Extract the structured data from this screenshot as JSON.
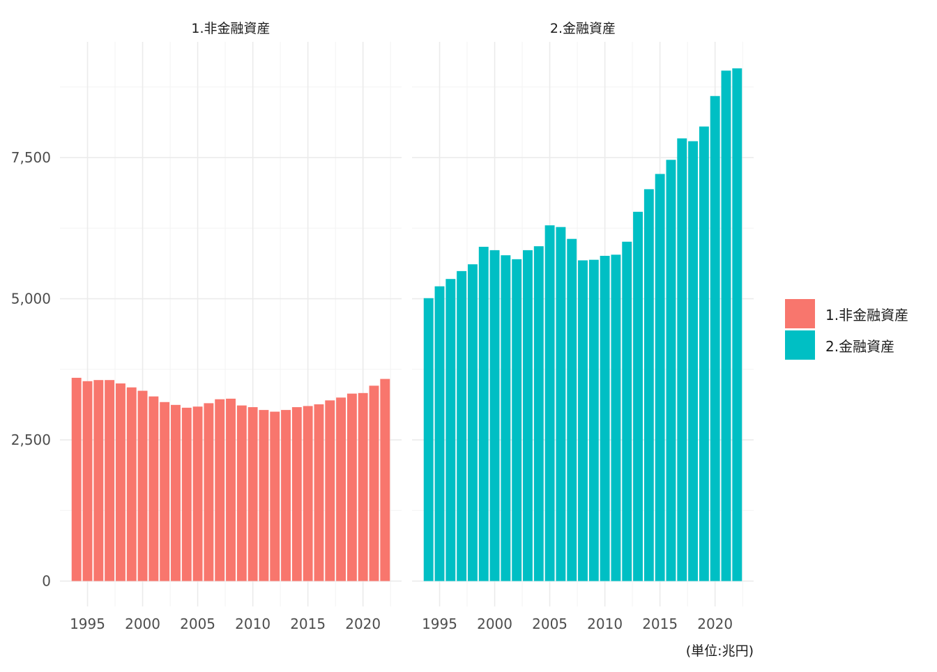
{
  "chart_data": {
    "type": "bar",
    "facets": [
      {
        "title": "1.非金融資産",
        "color": "#F8766D",
        "x": [
          1994,
          1995,
          1996,
          1997,
          1998,
          1999,
          2000,
          2001,
          2002,
          2003,
          2004,
          2005,
          2006,
          2007,
          2008,
          2009,
          2010,
          2011,
          2012,
          2013,
          2014,
          2015,
          2016,
          2017,
          2018,
          2019,
          2020,
          2021,
          2022
        ],
        "values": [
          3600,
          3540,
          3560,
          3560,
          3500,
          3430,
          3370,
          3270,
          3170,
          3120,
          3070,
          3090,
          3150,
          3220,
          3230,
          3110,
          3080,
          3030,
          3000,
          3030,
          3080,
          3100,
          3130,
          3200,
          3250,
          3320,
          3330,
          3460,
          3580
        ]
      },
      {
        "title": "2.金融資産",
        "color": "#00BFC4",
        "x": [
          1994,
          1995,
          1996,
          1997,
          1998,
          1999,
          2000,
          2001,
          2002,
          2003,
          2004,
          2005,
          2006,
          2007,
          2008,
          2009,
          2010,
          2011,
          2012,
          2013,
          2014,
          2015,
          2016,
          2017,
          2018,
          2019,
          2020,
          2021,
          2022
        ],
        "values": [
          5010,
          5220,
          5350,
          5490,
          5610,
          5920,
          5860,
          5770,
          5700,
          5860,
          5930,
          6300,
          6270,
          6060,
          5680,
          5690,
          5760,
          5780,
          6010,
          6540,
          6940,
          7210,
          7460,
          7840,
          7790,
          8050,
          8590,
          9040,
          9080
        ]
      }
    ],
    "x_ticks": [
      1995,
      2000,
      2005,
      2010,
      2015,
      2020
    ],
    "y_ticks": [
      0,
      2500,
      5000,
      7500
    ],
    "y_tick_labels": [
      "0",
      "2,500",
      "5,000",
      "7,500"
    ],
    "ylim": [
      -450,
      9550
    ],
    "xlim": [
      1992.5,
      2023.5
    ],
    "legend": {
      "position": "right",
      "entries": [
        {
          "label": "1.非金融資産",
          "color": "#F8766D"
        },
        {
          "label": "2.金融資産",
          "color": "#00BFC4"
        }
      ]
    },
    "caption": "(単位:兆円)",
    "grid": true
  }
}
